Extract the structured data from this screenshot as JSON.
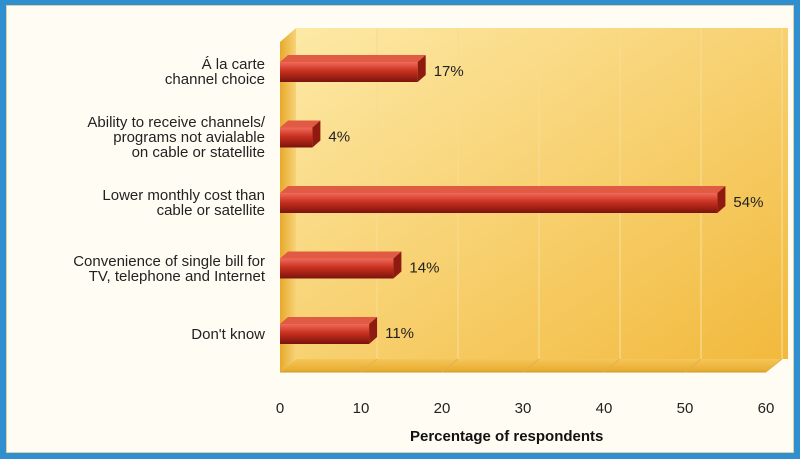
{
  "chart_data": {
    "type": "bar",
    "orientation": "horizontal",
    "categories": [
      [
        "Á la carte",
        "channel choice"
      ],
      [
        "Ability to receive channels/",
        "programs not avialable",
        "on cable or statellite"
      ],
      [
        "Lower monthly cost than",
        "cable or satellite"
      ],
      [
        "Convenience of single bill for",
        "TV, telephone and Internet"
      ],
      [
        "Don't know"
      ]
    ],
    "values": [
      17,
      4,
      54,
      14,
      11
    ],
    "value_labels": [
      "17%",
      "4%",
      "54%",
      "14%",
      "11%"
    ],
    "xlabel": "Percentage of respondents",
    "xlim": [
      0,
      60
    ],
    "xticks": [
      "0",
      "10",
      "20",
      "30",
      "40",
      "50",
      "60"
    ],
    "grid": true,
    "bar_color": "#b8271d",
    "wall_color": "#f3c452"
  }
}
